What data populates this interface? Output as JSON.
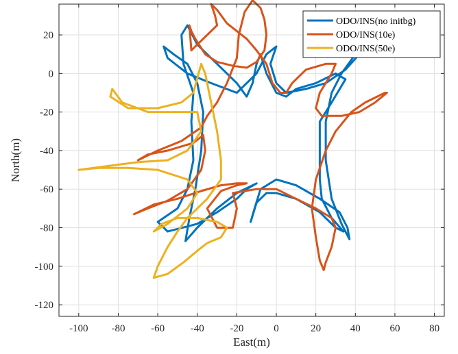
{
  "chart_data": {
    "type": "line",
    "title": "",
    "xlabel": "East(m)",
    "ylabel": "North(m)",
    "xlim": [
      -110,
      85
    ],
    "ylim": [
      -126,
      36
    ],
    "xticks": [
      -100,
      -80,
      -60,
      -40,
      -20,
      0,
      20,
      40,
      60,
      80
    ],
    "yticks": [
      20,
      0,
      -20,
      -40,
      -60,
      -80,
      -100,
      -120
    ],
    "grid": true,
    "legend_position": "top-right",
    "series": [
      {
        "name": "ODO/INS(no initbg)",
        "color": "#0072BD",
        "points": [
          [
            -20,
            -10
          ],
          [
            -33,
            -5
          ],
          [
            -45,
            0
          ],
          [
            -55,
            8
          ],
          [
            -57,
            14
          ],
          [
            -52,
            10
          ],
          [
            -45,
            5
          ],
          [
            -40,
            -5
          ],
          [
            -37,
            -20
          ],
          [
            -38,
            -40
          ],
          [
            -41,
            -60
          ],
          [
            -44,
            -75
          ],
          [
            -46,
            -87
          ],
          [
            -40,
            -80
          ],
          [
            -30,
            -70
          ],
          [
            -20,
            -62
          ],
          [
            -10,
            -57
          ],
          [
            -15,
            -60
          ],
          [
            -20,
            -65
          ],
          [
            -30,
            -72
          ],
          [
            -40,
            -78
          ],
          [
            -55,
            -82
          ],
          [
            -60,
            -77
          ],
          [
            -50,
            -70
          ],
          [
            -45,
            -60
          ],
          [
            -42,
            -45
          ],
          [
            -43,
            -25
          ],
          [
            -42,
            -10
          ],
          [
            -47,
            5
          ],
          [
            -48,
            20
          ],
          [
            -45,
            25
          ],
          [
            -40,
            15
          ],
          [
            -30,
            5
          ],
          [
            -20,
            -5
          ],
          [
            -15,
            -12
          ],
          [
            -12,
            -5
          ],
          [
            -10,
            5
          ],
          [
            -8,
            10
          ],
          [
            -5,
            0
          ],
          [
            0,
            -10
          ],
          [
            5,
            -12
          ],
          [
            10,
            -8
          ],
          [
            20,
            -5
          ],
          [
            30,
            0
          ],
          [
            35,
            -3
          ],
          [
            28,
            -15
          ],
          [
            22,
            -25
          ],
          [
            22,
            -40
          ],
          [
            22,
            -55
          ],
          [
            23,
            -65
          ],
          [
            28,
            -75
          ],
          [
            34,
            -82
          ],
          [
            30,
            -80
          ],
          [
            22,
            -72
          ],
          [
            10,
            -65
          ],
          [
            0,
            -62
          ],
          [
            -5,
            -62
          ],
          [
            -10,
            -67
          ],
          [
            -13,
            -77
          ],
          [
            -11,
            -70
          ],
          [
            -8,
            -60
          ],
          [
            0,
            -55
          ],
          [
            10,
            -58
          ],
          [
            22,
            -65
          ],
          [
            32,
            -72
          ],
          [
            36,
            -80
          ],
          [
            37,
            -86
          ],
          [
            33,
            -78
          ],
          [
            28,
            -65
          ],
          [
            25,
            -45
          ],
          [
            25,
            -25
          ],
          [
            28,
            -10
          ],
          [
            33,
            0
          ],
          [
            40,
            10
          ],
          [
            47,
            16
          ],
          [
            42,
            10
          ],
          [
            35,
            2
          ],
          [
            25,
            -5
          ],
          [
            15,
            -8
          ],
          [
            5,
            -10
          ],
          [
            0,
            -5
          ],
          [
            -3,
            5
          ],
          [
            0,
            14
          ],
          [
            -5,
            10
          ],
          [
            -10,
            0
          ],
          [
            -20,
            -10
          ]
        ]
      },
      {
        "name": "ODO/INS(10e)",
        "color": "#D95319",
        "points": [
          [
            -44,
            25
          ],
          [
            -43,
            22
          ],
          [
            -41,
            18
          ],
          [
            -36,
            10
          ],
          [
            -30,
            6
          ],
          [
            -22,
            4
          ],
          [
            -15,
            3
          ],
          [
            -10,
            6
          ],
          [
            -6,
            12
          ],
          [
            -5,
            20
          ],
          [
            -6,
            28
          ],
          [
            -8,
            34
          ],
          [
            -12,
            38
          ],
          [
            -16,
            32
          ],
          [
            -19,
            20
          ],
          [
            -20,
            8
          ],
          [
            -25,
            -5
          ],
          [
            -30,
            -15
          ],
          [
            -35,
            -22
          ],
          [
            -38,
            -28
          ],
          [
            -48,
            -35
          ],
          [
            -60,
            -40
          ],
          [
            -70,
            -45
          ],
          [
            -65,
            -42
          ],
          [
            -55,
            -40
          ],
          [
            -42,
            -36
          ],
          [
            -37,
            -32
          ],
          [
            -36,
            -40
          ],
          [
            -38,
            -50
          ],
          [
            -45,
            -60
          ],
          [
            -55,
            -66
          ],
          [
            -65,
            -70
          ],
          [
            -72,
            -73
          ],
          [
            -62,
            -68
          ],
          [
            -50,
            -65
          ],
          [
            -38,
            -61
          ],
          [
            -28,
            -58
          ],
          [
            -20,
            -57
          ],
          [
            -15,
            -57
          ],
          [
            -20,
            -58
          ],
          [
            -28,
            -61
          ],
          [
            -35,
            -70
          ],
          [
            -30,
            -80
          ],
          [
            -22,
            -80
          ],
          [
            -20,
            -70
          ],
          [
            -22,
            -62
          ],
          [
            -10,
            -60
          ],
          [
            0,
            -60
          ],
          [
            10,
            -65
          ],
          [
            20,
            -70
          ],
          [
            28,
            -75
          ],
          [
            30,
            -80
          ],
          [
            28,
            -90
          ],
          [
            25,
            -98
          ],
          [
            24,
            -102
          ],
          [
            22,
            -97
          ],
          [
            20,
            -85
          ],
          [
            18,
            -70
          ],
          [
            20,
            -55
          ],
          [
            25,
            -40
          ],
          [
            30,
            -30
          ],
          [
            38,
            -20
          ],
          [
            45,
            -15
          ],
          [
            55,
            -10
          ],
          [
            56,
            -10
          ],
          [
            50,
            -15
          ],
          [
            42,
            -20
          ],
          [
            33,
            -22
          ],
          [
            23,
            -22
          ],
          [
            20,
            -18
          ],
          [
            22,
            -10
          ],
          [
            28,
            0
          ],
          [
            30,
            5
          ],
          [
            25,
            5
          ],
          [
            15,
            2
          ],
          [
            8,
            -5
          ],
          [
            5,
            -10
          ],
          [
            2,
            -10
          ],
          [
            -2,
            -5
          ],
          [
            -5,
            5
          ],
          [
            -10,
            12
          ],
          [
            -15,
            18
          ],
          [
            -20,
            22
          ],
          [
            -25,
            26
          ],
          [
            -30,
            33
          ],
          [
            -33,
            36
          ],
          [
            -31,
            30
          ],
          [
            -30,
            25
          ],
          [
            -35,
            20
          ],
          [
            -40,
            15
          ],
          [
            -43,
            12
          ],
          [
            -44,
            25
          ]
        ]
      },
      {
        "name": "ODO/INS(50e)",
        "color": "#EDB120",
        "points": [
          [
            -38,
            5
          ],
          [
            -42,
            -10
          ],
          [
            -48,
            -15
          ],
          [
            -60,
            -18
          ],
          [
            -75,
            -18
          ],
          [
            -84,
            -12
          ],
          [
            -83,
            -8
          ],
          [
            -78,
            -15
          ],
          [
            -65,
            -20
          ],
          [
            -50,
            -20
          ],
          [
            -40,
            -20
          ],
          [
            -38,
            -30
          ],
          [
            -45,
            -40
          ],
          [
            -55,
            -45
          ],
          [
            -70,
            -46
          ],
          [
            -85,
            -48
          ],
          [
            -100,
            -50
          ],
          [
            -90,
            -49
          ],
          [
            -75,
            -49
          ],
          [
            -60,
            -50
          ],
          [
            -45,
            -55
          ],
          [
            -40,
            -62
          ],
          [
            -45,
            -70
          ],
          [
            -55,
            -78
          ],
          [
            -62,
            -82
          ],
          [
            -58,
            -78
          ],
          [
            -50,
            -75
          ],
          [
            -40,
            -75
          ],
          [
            -30,
            -77
          ],
          [
            -25,
            -80
          ],
          [
            -28,
            -85
          ],
          [
            -35,
            -88
          ],
          [
            -40,
            -92
          ],
          [
            -47,
            -98
          ],
          [
            -55,
            -104
          ],
          [
            -62,
            -106
          ],
          [
            -60,
            -100
          ],
          [
            -55,
            -90
          ],
          [
            -50,
            -82
          ],
          [
            -45,
            -75
          ],
          [
            -35,
            -65
          ],
          [
            -28,
            -55
          ],
          [
            -28,
            -45
          ],
          [
            -30,
            -30
          ],
          [
            -32,
            -20
          ],
          [
            -34,
            -10
          ],
          [
            -36,
            0
          ],
          [
            -38,
            5
          ]
        ]
      }
    ]
  }
}
